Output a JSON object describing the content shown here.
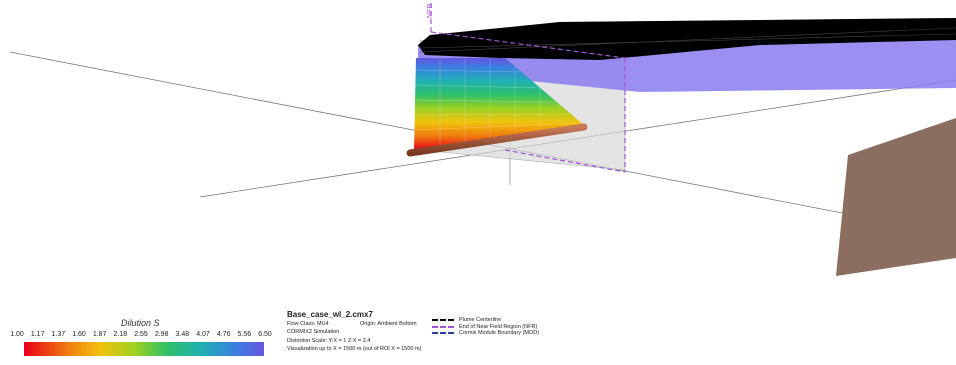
{
  "scene": {
    "nfr_marker": "NFR",
    "colors": {
      "plume_fill": "#8a7cf0",
      "nfr_line": "#a154d6",
      "plane_fill": "#d8d8d8",
      "diffuser_pipe": "#a85a3c",
      "bank_surface": "#8b6e60"
    }
  },
  "legend": {
    "title": "Dilution S",
    "ticks": [
      "1.00",
      "1.17",
      "1.37",
      "1.60",
      "1.87",
      "2.18",
      "2.55",
      "2.98",
      "3.48",
      "4.07",
      "4.76",
      "5.56",
      "6.50"
    ],
    "colormap": [
      "#e8001a",
      "#f07a10",
      "#f2c20d",
      "#9fd121",
      "#2fbf6a",
      "#1fb0b4",
      "#3b7fe0",
      "#6655e0"
    ]
  },
  "info": {
    "filename": "Base_case_wl_2.cmx7",
    "flow_class": "Flow Class: MU4",
    "origin": "Origin: Ambient Bottom",
    "simulation": "CORMIX2 Simulation",
    "distortion": "Distortion Scale:  Y:X = 1   Z:X = 2.4",
    "visualization": "Visualization up to X = 1500 m (out of ROI X = 1500 m)"
  },
  "line_key": [
    {
      "label": "Plume Centerline",
      "color": "#000000"
    },
    {
      "label": "End of Near Field Region (NFR)",
      "color": "#a154d6"
    },
    {
      "label": "Cormix Module Boundary (MOD)",
      "color": "#2a3fa8"
    }
  ]
}
